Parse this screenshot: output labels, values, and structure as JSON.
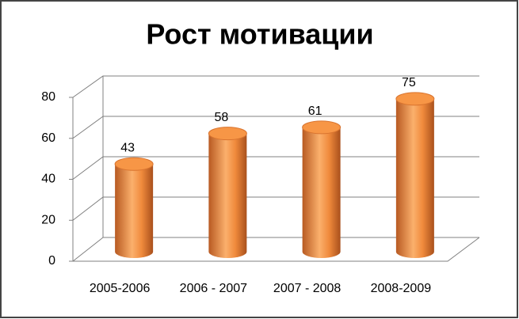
{
  "chart_data": {
    "type": "bar",
    "title": "Рост мотивации",
    "categories": [
      "2005-2006",
      "2006 - 2007",
      "2007 - 2008",
      "2008-2009"
    ],
    "values": [
      43,
      58,
      61,
      75
    ],
    "color": "#f79646",
    "ylim": [
      0,
      80
    ],
    "yticks": [
      0,
      20,
      40,
      60,
      80
    ],
    "grid": true
  }
}
